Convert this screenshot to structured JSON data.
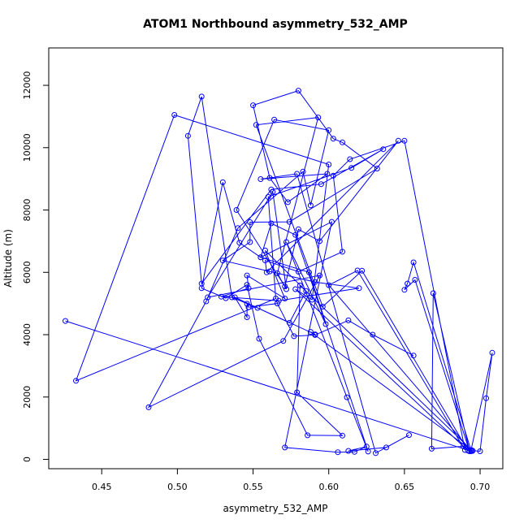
{
  "chart_data": {
    "type": "line",
    "title": "ATOM1 Northbound asymmetry_532_AMP",
    "xlabel": "asymmetry_532_AMP",
    "ylabel": "Altitude (m)",
    "xlim": [
      0.415,
      0.715
    ],
    "ylim": [
      -300,
      13200
    ],
    "x_ticks": [
      0.45,
      0.5,
      0.55,
      0.6,
      0.65,
      0.7
    ],
    "x_tick_labels": [
      "0.45",
      "0.50",
      "0.55",
      "0.60",
      "0.65",
      "0.70"
    ],
    "y_ticks": [
      0,
      2000,
      4000,
      6000,
      8000,
      10000,
      12000
    ],
    "y_tick_labels": [
      "0",
      "2000",
      "4000",
      "6000",
      "8000",
      "10000",
      "12000"
    ],
    "grid": false,
    "legend": "none",
    "series": [
      {
        "color": "#0000ff",
        "marker": "open-circle",
        "points": [
          [
            0.426,
            4440
          ],
          [
            0.694,
            260
          ],
          [
            0.695,
            280
          ],
          [
            0.7,
            260
          ],
          [
            0.704,
            1960
          ],
          [
            0.708,
            3420
          ],
          [
            0.694,
            300
          ],
          [
            0.689,
            420
          ],
          [
            0.668,
            340
          ],
          [
            0.669,
            5330
          ],
          [
            0.693,
            260
          ],
          [
            0.657,
            5760
          ],
          [
            0.65,
            5440
          ],
          [
            0.652,
            5640
          ],
          [
            0.656,
            6320
          ],
          [
            0.694,
            280
          ],
          [
            0.6,
            5590
          ],
          [
            0.619,
            6060
          ],
          [
            0.69,
            300
          ],
          [
            0.65,
            10220
          ],
          [
            0.614,
            9630
          ],
          [
            0.603,
            9100
          ],
          [
            0.609,
            6660
          ],
          [
            0.58,
            6020
          ],
          [
            0.558,
            6380
          ],
          [
            0.559,
            6000
          ],
          [
            0.646,
            10220
          ],
          [
            0.594,
            7000
          ],
          [
            0.58,
            7380
          ],
          [
            0.571,
            5550
          ],
          [
            0.539,
            8000
          ],
          [
            0.564,
            10900
          ],
          [
            0.6,
            10560
          ],
          [
            0.588,
            8150
          ],
          [
            0.583,
            9230
          ],
          [
            0.54,
            7420
          ],
          [
            0.519,
            5070
          ],
          [
            0.481,
            1670
          ],
          [
            0.57,
            3800
          ],
          [
            0.594,
            5900
          ],
          [
            0.52,
            5200
          ],
          [
            0.563,
            8580
          ],
          [
            0.572,
            5460
          ],
          [
            0.566,
            5970
          ],
          [
            0.593,
            10970
          ],
          [
            0.552,
            10730
          ],
          [
            0.596,
            4900
          ],
          [
            0.622,
            6050
          ],
          [
            0.692,
            280
          ],
          [
            0.578,
            5460
          ],
          [
            0.589,
            5120
          ],
          [
            0.6,
            9460
          ],
          [
            0.498,
            11050
          ],
          [
            0.433,
            2520
          ],
          [
            0.565,
            5160
          ],
          [
            0.56,
            8420
          ],
          [
            0.615,
            9350
          ],
          [
            0.636,
            9950
          ],
          [
            0.595,
            8830
          ],
          [
            0.562,
            8660
          ],
          [
            0.516,
            5640
          ],
          [
            0.507,
            10380
          ],
          [
            0.516,
            11640
          ],
          [
            0.536,
            5200
          ],
          [
            0.553,
            4860
          ],
          [
            0.591,
            4010
          ],
          [
            0.588,
            4090
          ],
          [
            0.695,
            270
          ],
          [
            0.581,
            5580
          ],
          [
            0.579,
            2150
          ],
          [
            0.609,
            760
          ],
          [
            0.586,
            770
          ],
          [
            0.554,
            3870
          ],
          [
            0.546,
            5600
          ],
          [
            0.532,
            5170
          ],
          [
            0.516,
            5490
          ],
          [
            0.53,
            8890
          ],
          [
            0.541,
            6950
          ],
          [
            0.555,
            6480
          ],
          [
            0.562,
            7570
          ],
          [
            0.578,
            7200
          ],
          [
            0.598,
            4340
          ],
          [
            0.572,
            6970
          ],
          [
            0.612,
            1990
          ],
          [
            0.626,
            250
          ],
          [
            0.587,
            6000
          ],
          [
            0.555,
            6480
          ],
          [
            0.602,
            7620
          ],
          [
            0.571,
            380
          ],
          [
            0.606,
            230
          ],
          [
            0.617,
            240
          ],
          [
            0.625,
            410
          ],
          [
            0.613,
            270
          ],
          [
            0.638,
            380
          ],
          [
            0.653,
            780
          ],
          [
            0.631,
            200
          ],
          [
            0.579,
            9160
          ],
          [
            0.555,
            8990
          ],
          [
            0.599,
            9160
          ],
          [
            0.573,
            8250
          ],
          [
            0.561,
            9030
          ],
          [
            0.55,
            11360
          ],
          [
            0.58,
            11830
          ],
          [
            0.603,
            10290
          ],
          [
            0.609,
            10170
          ],
          [
            0.632,
            9330
          ],
          [
            0.574,
            7620
          ],
          [
            0.548,
            7610
          ],
          [
            0.548,
            6970
          ],
          [
            0.53,
            6380
          ],
          [
            0.561,
            6030
          ],
          [
            0.591,
            5690
          ],
          [
            0.62,
            5490
          ],
          [
            0.567,
            5090
          ],
          [
            0.529,
            5220
          ],
          [
            0.547,
            5490
          ],
          [
            0.546,
            5900
          ],
          [
            0.571,
            5160
          ],
          [
            0.558,
            6700
          ],
          [
            0.585,
            5400
          ],
          [
            0.574,
            4380
          ],
          [
            0.538,
            5200
          ],
          [
            0.546,
            4560
          ],
          [
            0.546,
            4990
          ],
          [
            0.547,
            4880
          ],
          [
            0.566,
            5000
          ],
          [
            0.577,
            3950
          ],
          [
            0.591,
            3990
          ],
          [
            0.613,
            4460
          ],
          [
            0.629,
            4000
          ],
          [
            0.656,
            3330
          ]
        ]
      }
    ]
  }
}
